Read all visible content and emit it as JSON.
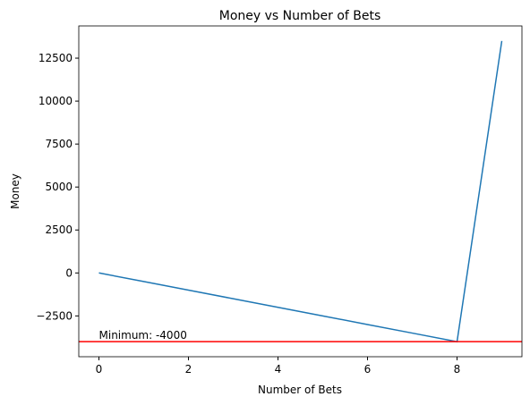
{
  "chart_data": {
    "type": "line",
    "title": "Money vs Number of Bets",
    "x_label": "Number of Bets",
    "y_label": "Money",
    "x": [
      0,
      1,
      2,
      3,
      4,
      5,
      6,
      7,
      8,
      9
    ],
    "series": [
      {
        "name": "Money",
        "color": "#1f77b4",
        "values": [
          0,
          -500,
          -1000,
          -1500,
          -2000,
          -2500,
          -3000,
          -3500,
          -4000,
          13500
        ]
      }
    ],
    "hline": {
      "value": -4000,
      "color": "#ff0000",
      "annotation": "Minimum: -4000"
    },
    "xlim": [
      -0.45,
      9.45
    ],
    "xticks": [
      0,
      2,
      4,
      6,
      8
    ],
    "ylim": [
      -4875,
      14375
    ],
    "yticks": [
      {
        "value": -2500,
        "label": "−2500"
      },
      0,
      2500,
      5000,
      7500,
      10000,
      12500
    ],
    "grid": false
  }
}
